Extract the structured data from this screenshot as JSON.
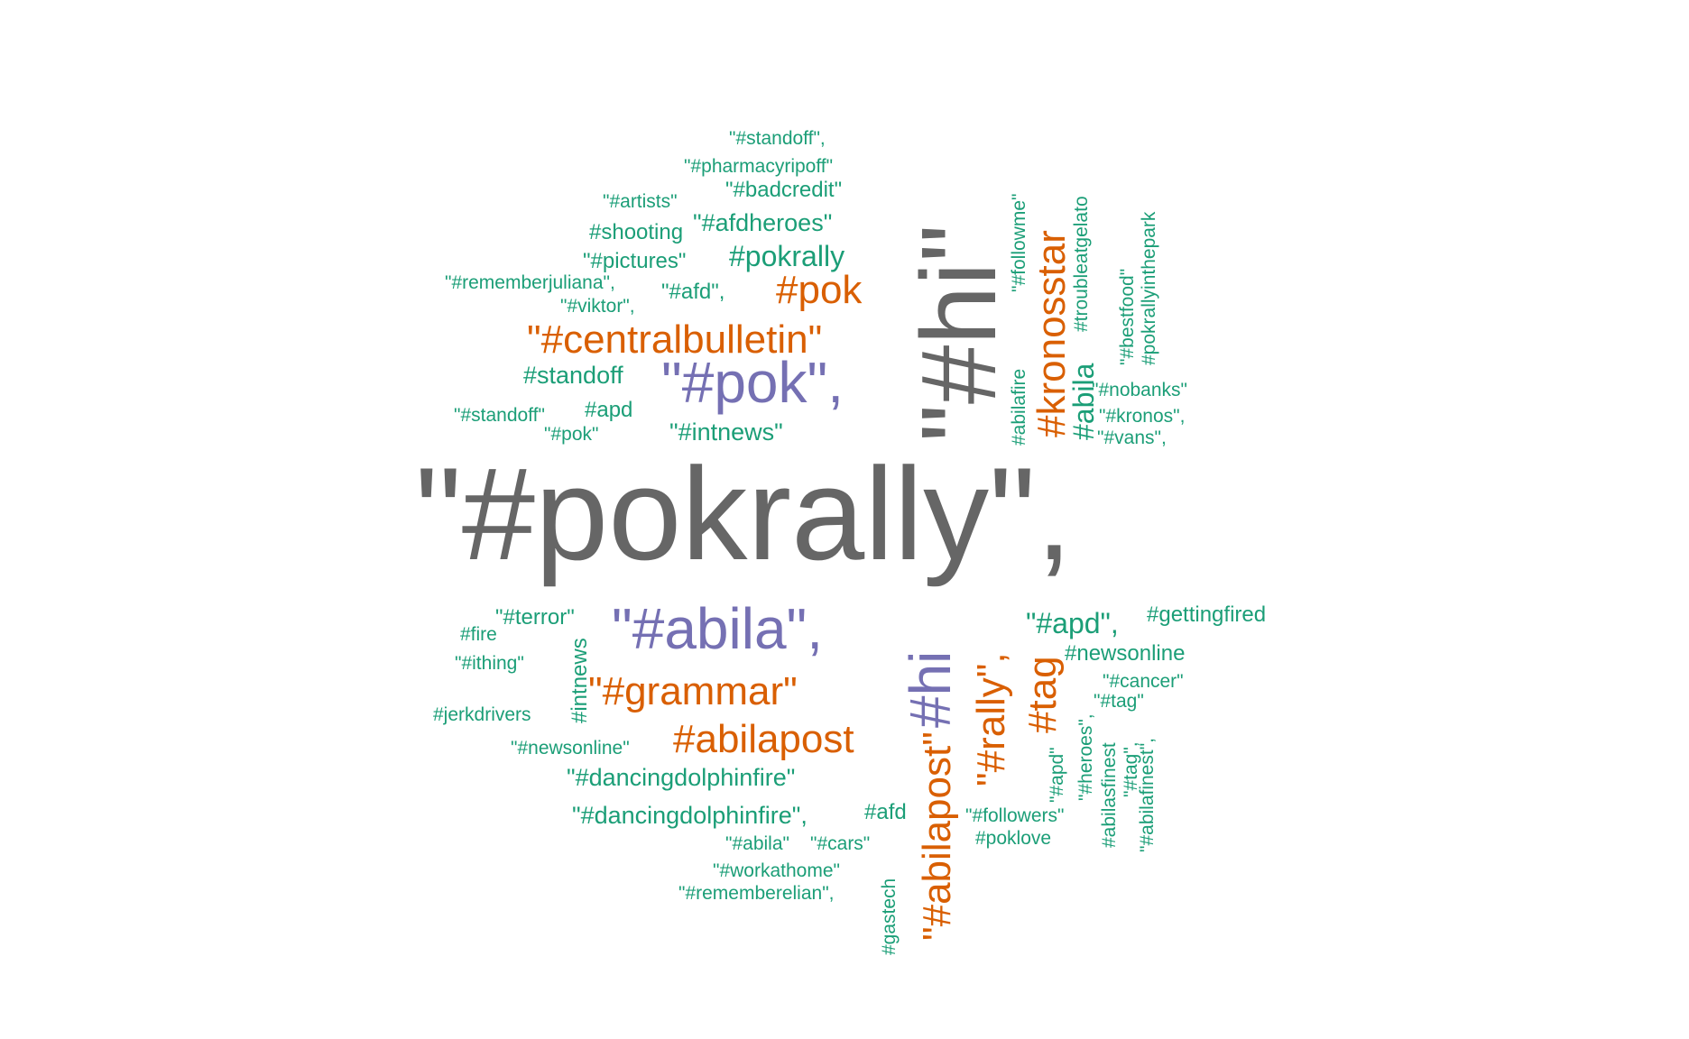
{
  "chart_data": {
    "type": "wordcloud",
    "colors": {
      "largest": "#666666",
      "purple": "#7570B3",
      "orange": "#D95F02",
      "green": "#1B9E77"
    },
    "words": [
      {
        "text": "\"#pokrally\",",
        "weight": 100,
        "color": "#666666",
        "rotate": 0
      },
      {
        "text": "\"#hi\"",
        "weight": 62,
        "color": "#666666",
        "rotate": -90
      },
      {
        "text": "\"#pok\",",
        "weight": 31,
        "color": "#7570B3",
        "rotate": 0
      },
      {
        "text": "\"#abila\",",
        "weight": 33,
        "color": "#7570B3",
        "rotate": 0
      },
      {
        "text": "#hi",
        "weight": 30,
        "color": "#7570B3",
        "rotate": -90
      },
      {
        "text": "\"#grammar\"",
        "weight": 24,
        "color": "#D95F02",
        "rotate": 0
      },
      {
        "text": "#abilapost",
        "weight": 23,
        "color": "#D95F02",
        "rotate": 0
      },
      {
        "text": "\"#centralbulletin\"",
        "weight": 21,
        "color": "#D95F02",
        "rotate": 0
      },
      {
        "text": "#kronosstar",
        "weight": 21,
        "color": "#D95F02",
        "rotate": -90
      },
      {
        "text": "\"#abilapost\"",
        "weight": 21,
        "color": "#D95F02",
        "rotate": -90
      },
      {
        "text": "\"#rally\",",
        "weight": 25,
        "color": "#D95F02",
        "rotate": -90
      },
      {
        "text": "#tag",
        "weight": 21,
        "color": "#D95F02",
        "rotate": -90
      },
      {
        "text": "#pok",
        "weight": 20,
        "color": "#D95F02",
        "rotate": 0
      },
      {
        "text": "#pokrally",
        "weight": 16,
        "color": "#1B9E77",
        "rotate": 0
      },
      {
        "text": "\"#apd\",",
        "weight": 16,
        "color": "#1B9E77",
        "rotate": 0
      },
      {
        "text": "#abila",
        "weight": 15,
        "color": "#1B9E77",
        "rotate": -90
      },
      {
        "text": "\"#afdheroes\"",
        "weight": 13,
        "color": "#1B9E77",
        "rotate": 0
      },
      {
        "text": "#standoff",
        "weight": 13,
        "color": "#1B9E77",
        "rotate": 0
      },
      {
        "text": "\"#intnews\"",
        "weight": 13,
        "color": "#1B9E77",
        "rotate": 0
      },
      {
        "text": "\"#dancingdolphinfire\"",
        "weight": 13,
        "color": "#1B9E77",
        "rotate": 0
      },
      {
        "text": "\"#dancingdolphinfire\",",
        "weight": 13,
        "color": "#1B9E77",
        "rotate": 0
      },
      {
        "text": "#newsonline",
        "weight": 12,
        "color": "#1B9E77",
        "rotate": 0
      },
      {
        "text": "\"#afd\",",
        "weight": 12,
        "color": "#1B9E77",
        "rotate": 0
      },
      {
        "text": "#apd",
        "weight": 12,
        "color": "#1B9E77",
        "rotate": 0
      },
      {
        "text": "\"#terror\"",
        "weight": 11,
        "color": "#1B9E77",
        "rotate": 0
      },
      {
        "text": "#afd",
        "weight": 11,
        "color": "#1B9E77",
        "rotate": 0
      },
      {
        "text": "\"#badcredit\"",
        "weight": 11,
        "color": "#1B9E77",
        "rotate": 0
      },
      {
        "text": "\"#pictures\"",
        "weight": 11,
        "color": "#1B9E77",
        "rotate": 0
      },
      {
        "text": "#shooting",
        "weight": 11,
        "color": "#1B9E77",
        "rotate": 0
      },
      {
        "text": "#intnews",
        "weight": 11,
        "color": "#1B9E77",
        "rotate": -90
      },
      {
        "text": "#gettingfired",
        "weight": 11,
        "color": "#1B9E77",
        "rotate": 0
      },
      {
        "text": "\"#standoff\",",
        "weight": 10,
        "color": "#1B9E77",
        "rotate": 0
      },
      {
        "text": "\"#pharmacyripoff\"",
        "weight": 10,
        "color": "#1B9E77",
        "rotate": 0
      },
      {
        "text": "\"#artists\"",
        "weight": 10,
        "color": "#1B9E77",
        "rotate": 0
      },
      {
        "text": "\"#rememberjuliana\",",
        "weight": 10,
        "color": "#1B9E77",
        "rotate": 0
      },
      {
        "text": "\"#viktor\",",
        "weight": 10,
        "color": "#1B9E77",
        "rotate": 0
      },
      {
        "text": "\"#standoff\"",
        "weight": 10,
        "color": "#1B9E77",
        "rotate": 0
      },
      {
        "text": "\"#pok\"",
        "weight": 10,
        "color": "#1B9E77",
        "rotate": 0
      },
      {
        "text": "#fire",
        "weight": 10,
        "color": "#1B9E77",
        "rotate": 0
      },
      {
        "text": "\"#ithing\"",
        "weight": 10,
        "color": "#1B9E77",
        "rotate": 0
      },
      {
        "text": "#jerkdrivers",
        "weight": 10,
        "color": "#1B9E77",
        "rotate": 0
      },
      {
        "text": "\"#newsonline\"",
        "weight": 10,
        "color": "#1B9E77",
        "rotate": 0
      },
      {
        "text": "\"#abila\"",
        "weight": 10,
        "color": "#1B9E77",
        "rotate": 0
      },
      {
        "text": "\"#cars\"",
        "weight": 10,
        "color": "#1B9E77",
        "rotate": 0
      },
      {
        "text": "\"#workathome\"",
        "weight": 10,
        "color": "#1B9E77",
        "rotate": 0
      },
      {
        "text": "\"#rememberelian\",",
        "weight": 10,
        "color": "#1B9E77",
        "rotate": 0
      },
      {
        "text": "#gastech",
        "weight": 10,
        "color": "#1B9E77",
        "rotate": -90
      },
      {
        "text": "\"#followers\"",
        "weight": 10,
        "color": "#1B9E77",
        "rotate": 0
      },
      {
        "text": "#poklove",
        "weight": 10,
        "color": "#1B9E77",
        "rotate": 0
      },
      {
        "text": "\"#followme\"",
        "weight": 10,
        "color": "#1B9E77",
        "rotate": -90
      },
      {
        "text": "#abilafire",
        "weight": 10,
        "color": "#1B9E77",
        "rotate": -90
      },
      {
        "text": "#troubleatgelato",
        "weight": 10,
        "color": "#1B9E77",
        "rotate": -90
      },
      {
        "text": "\"#bestfood\"",
        "weight": 10,
        "color": "#1B9E77",
        "rotate": -90
      },
      {
        "text": "#pokrallyinthepark",
        "weight": 10,
        "color": "#1B9E77",
        "rotate": -90
      },
      {
        "text": "\"#nobanks\"",
        "weight": 10,
        "color": "#1B9E77",
        "rotate": 0
      },
      {
        "text": "\"#kronos\",",
        "weight": 10,
        "color": "#1B9E77",
        "rotate": 0
      },
      {
        "text": "\"#vans\",",
        "weight": 10,
        "color": "#1B9E77",
        "rotate": 0
      },
      {
        "text": "\"#cancer\"",
        "weight": 10,
        "color": "#1B9E77",
        "rotate": 0
      },
      {
        "text": "\"#tag\"",
        "weight": 10,
        "color": "#1B9E77",
        "rotate": 0
      },
      {
        "text": "\"#heroes\",",
        "weight": 10,
        "color": "#1B9E77",
        "rotate": -90
      },
      {
        "text": "\"#apd\"",
        "weight": 10,
        "color": "#1B9E77",
        "rotate": -90
      },
      {
        "text": "#abilasfinest",
        "weight": 10,
        "color": "#1B9E77",
        "rotate": -90
      },
      {
        "text": "\"#tag\",",
        "weight": 10,
        "color": "#1B9E77",
        "rotate": -90
      },
      {
        "text": "\"#abilafinest\",",
        "weight": 10,
        "color": "#1B9E77",
        "rotate": -90
      }
    ]
  }
}
